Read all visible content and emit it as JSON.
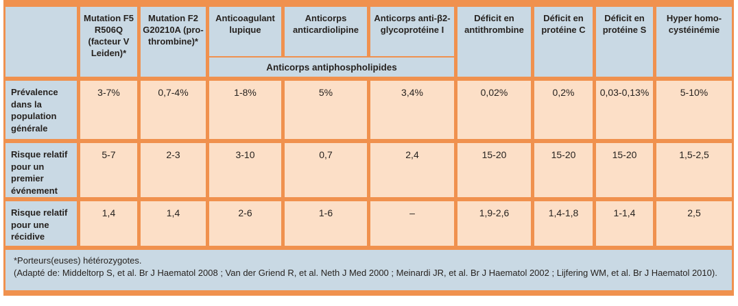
{
  "colors": {
    "orange": "#F0914E",
    "blue": "#C9D9E4",
    "peach": "#FCDFC7",
    "ink": "#26221F"
  },
  "table": {
    "columns": [
      {
        "label": "Mutation F5 R506Q (facteur V Leiden)*"
      },
      {
        "label": "Mutation F2 G20210A (pro- thrombine)*"
      },
      {
        "label": "Anticoagulant lupique"
      },
      {
        "label": "Anticorps anticardiolipine"
      },
      {
        "label": "Anticorps anti-β2- glycoprotéine I"
      },
      {
        "label": "Déficit en antithrombine"
      },
      {
        "label": "Déficit en protéine C"
      },
      {
        "label": "Déficit en protéine S"
      },
      {
        "label": "Hyper homo- cystéinémie"
      }
    ],
    "subheader": "Anticorps antiphospholipides",
    "rows": [
      {
        "label": "Prévalence dans la population générale",
        "values": [
          "3-7%",
          "0,7-4%",
          "1-8%",
          "5%",
          "3,4%",
          "0,02%",
          "0,2%",
          "0,03-0,13%",
          "5-10%"
        ]
      },
      {
        "label": "Risque relatif pour un premier événement",
        "values": [
          "5-7",
          "2-3",
          "3-10",
          "0,7",
          "2,4",
          "15-20",
          "15-20",
          "15-20",
          "1,5-2,5"
        ]
      },
      {
        "label": "Risque relatif pour une récidive",
        "values": [
          "1,4",
          "1,4",
          "2-6",
          "1-6",
          "–",
          "1,9-2,6",
          "1,4-1,8",
          "1-1,4",
          "2,5"
        ]
      }
    ],
    "footnotes": [
      "*Porteurs(euses) hétérozygotes.",
      "(Adapté de: Middeltorp S, et al. Br J Haematol 2008 ; Van der Griend R, et al. Neth J Med 2000 ; Meinardi JR, et al. Br J Haematol 2002 ; Lijfering WM, et al. Br J Haematol 2010)."
    ]
  }
}
